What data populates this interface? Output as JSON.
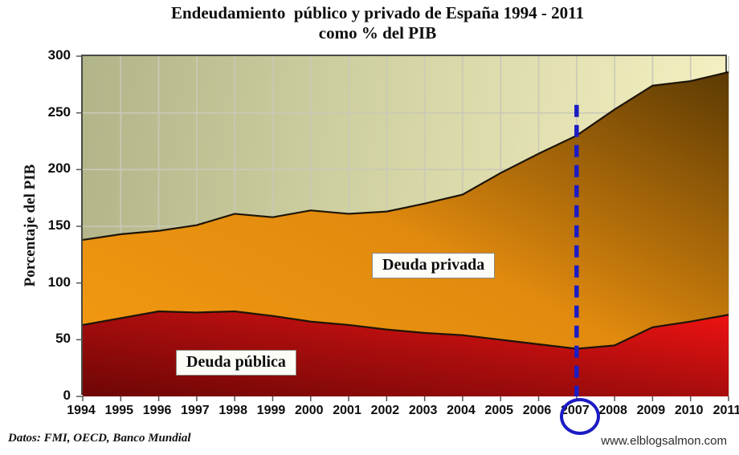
{
  "title": {
    "line1": "Endeudamiento  público y privado de España 1994 - 2011",
    "line2": "como % del PIB"
  },
  "footer": {
    "source": "Datos: FMI, OECD, Banco Mundial",
    "website": "www.elblogsalmon.com"
  },
  "chart_data": {
    "type": "area",
    "stacked": true,
    "title": "Endeudamiento público y privado de España 1994 - 2011 como % del PIB",
    "xlabel": "",
    "ylabel": "Porcentaje del PIB",
    "ylim": [
      0,
      300
    ],
    "yticks": [
      0,
      50,
      100,
      150,
      200,
      250,
      300
    ],
    "grid": true,
    "categories": [
      "1994",
      "1995",
      "1996",
      "1997",
      "1998",
      "1999",
      "2000",
      "2001",
      "2002",
      "2003",
      "2004",
      "2005",
      "2006",
      "2007",
      "2008",
      "2009",
      "2010",
      "2011"
    ],
    "series": [
      {
        "name": "Deuda pública",
        "values": [
          63,
          69,
          75,
          74,
          75,
          71,
          66,
          63,
          59,
          56,
          54,
          50,
          46,
          42,
          45,
          61,
          66,
          72
        ]
      },
      {
        "name": "Deuda privada",
        "values": [
          75,
          74,
          71,
          77,
          86,
          87,
          98,
          98,
          104,
          114,
          124,
          147,
          168,
          188,
          208,
          213,
          212,
          214
        ]
      }
    ],
    "totals_note": "total debt = public + private, rises from ~138 in 1994 to ~286 in 2011",
    "annotations": {
      "highlight_year": "2007",
      "dashed_line_value_top": 257
    },
    "colors": {
      "accent_blue": "#1c1cc4",
      "grid": "#c9c9b8",
      "line_stroke": "#1d1408",
      "public_gradient": [
        "#6e0606",
        "#a80d0d",
        "#f01212"
      ],
      "private_gradient": [
        "#f59b12",
        "#e18a0e",
        "#5c3a03"
      ],
      "bg_gradient": [
        "#b2b489",
        "#f8f3c4"
      ]
    }
  }
}
